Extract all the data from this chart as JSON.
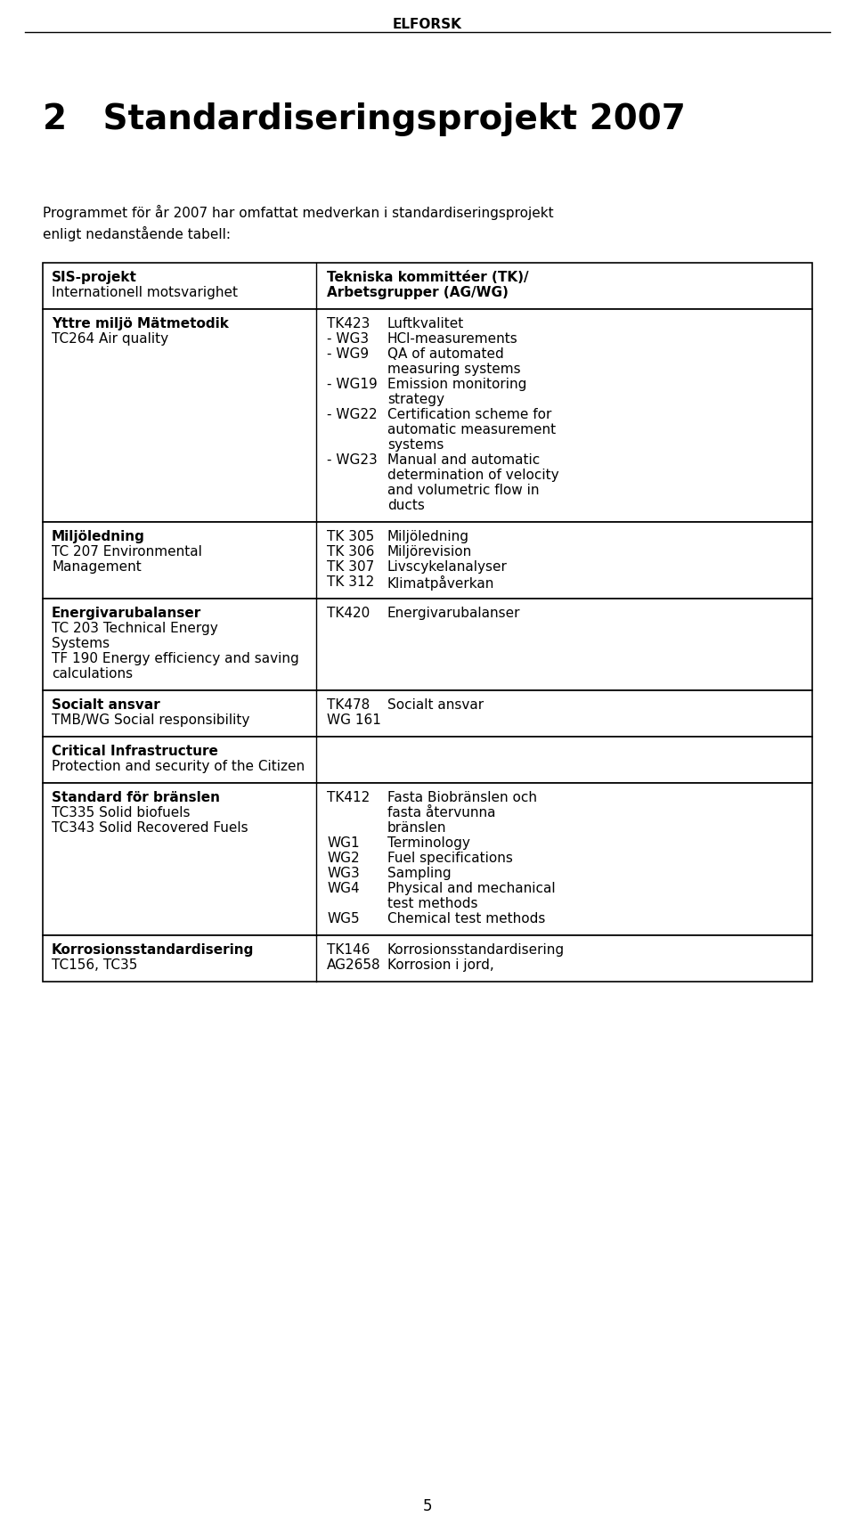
{
  "header_text": "ELFORSK",
  "title": "2   Standardiseringsprojekt 2007",
  "intro_text": "Programmet för år 2007 har omfattat medverkan i standardiseringsprojekt\nenligt nedanstående tabell:",
  "rows": [
    {
      "left_bold": "SIS-projekt",
      "left_normal": "Internationell motsvarighet",
      "right_bold": "Tekniska kommittéer (TK)/",
      "right_bold2": "Arbetsgrupper (AG/WG)",
      "right_normal": "",
      "is_header": true,
      "right_lines": []
    },
    {
      "left_bold": "Yttre miljö Mätmetodik",
      "left_normal": "TC264 Air quality",
      "is_header": false,
      "right_lines": [
        {
          "code": "TK423",
          "desc": "Luftkvalitet"
        },
        {
          "code": "- WG3",
          "desc": "HCl-measurements"
        },
        {
          "code": "- WG9",
          "desc": "QA of automated\nmeasuring systems"
        },
        {
          "code": "- WG19",
          "desc": "Emission monitoring\nstrategy"
        },
        {
          "code": "- WG22",
          "desc": "Certification scheme for\nautomatic measurement\nsystems"
        },
        {
          "code": "- WG23",
          "desc": "Manual and automatic\ndetermination of velocity\nand volumetric flow in\nducts"
        }
      ]
    },
    {
      "left_bold": "Miljöledning",
      "left_normal": "TC 207 Environmental\nManagement",
      "is_header": false,
      "right_lines": [
        {
          "code": "TK 305",
          "desc": "Miljöledning"
        },
        {
          "code": "TK 306",
          "desc": "Miljörevision"
        },
        {
          "code": "TK 307",
          "desc": "Livscykelanalyser"
        },
        {
          "code": "TK 312",
          "desc": "Klimatpåverkan"
        }
      ]
    },
    {
      "left_bold": "Energivarubalanser",
      "left_normal": "TC 203 Technical Energy\nSystems\nTF 190 Energy efficiency and saving\ncalculations",
      "is_header": false,
      "right_lines": [
        {
          "code": "TK420",
          "desc": "Energivarubalanser"
        }
      ]
    },
    {
      "left_bold": "Socialt ansvar",
      "left_normal": "TMB/WG Social responsibility",
      "is_header": false,
      "right_lines": [
        {
          "code": "TK478",
          "desc": "Socialt ansvar"
        },
        {
          "code": "WG 161",
          "desc": ""
        }
      ]
    },
    {
      "left_bold": "Critical Infrastructure",
      "left_normal": "Protection and security of the Citizen",
      "is_header": false,
      "right_lines": []
    },
    {
      "left_bold": "Standard för bränslen",
      "left_normal": "TC335 Solid biofuels\nTC343 Solid Recovered Fuels",
      "is_header": false,
      "right_lines": [
        {
          "code": "TK412",
          "desc": "Fasta Biobränslen och\nfasta återvunna\nbränslen"
        },
        {
          "code": "WG1",
          "desc": "Terminology"
        },
        {
          "code": "WG2",
          "desc": "Fuel specifications"
        },
        {
          "code": "WG3",
          "desc": "Sampling"
        },
        {
          "code": "WG4",
          "desc": "Physical and mechanical\ntest methods"
        },
        {
          "code": "WG5",
          "desc": "Chemical test methods"
        }
      ]
    },
    {
      "left_bold": "Korrosionsstandardisering",
      "left_normal": "TC156, TC35",
      "is_header": false,
      "right_lines": [
        {
          "code": "TK146",
          "desc": "Korrosionsstandardisering"
        },
        {
          "code": "AG2658",
          "desc": "Korrosion i jord,"
        }
      ]
    }
  ],
  "footer_text": "5",
  "bg_color": "#ffffff",
  "text_color": "#000000"
}
